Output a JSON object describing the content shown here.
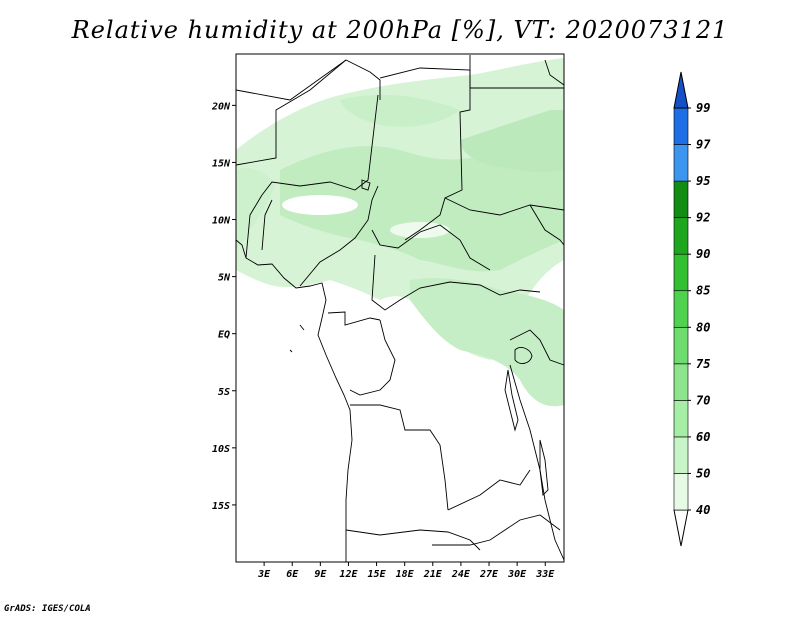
{
  "title": "Relative humidity at 200hPa [%], VT: 2020073121",
  "credit": "GrADS: IGES/COLA",
  "map": {
    "lon_range": [
      0,
      35
    ],
    "lat_range": [
      -20,
      24.5
    ],
    "lon_ticks": [
      {
        "value": 3,
        "label": "3E"
      },
      {
        "value": 6,
        "label": "6E"
      },
      {
        "value": 9,
        "label": "9E"
      },
      {
        "value": 12,
        "label": "12E"
      },
      {
        "value": 15,
        "label": "15E"
      },
      {
        "value": 18,
        "label": "18E"
      },
      {
        "value": 21,
        "label": "21E"
      },
      {
        "value": 24,
        "label": "24E"
      },
      {
        "value": 27,
        "label": "27E"
      },
      {
        "value": 30,
        "label": "30E"
      },
      {
        "value": 33,
        "label": "33E"
      }
    ],
    "lat_ticks": [
      {
        "value": 20,
        "label": "20N"
      },
      {
        "value": 15,
        "label": "15N"
      },
      {
        "value": 10,
        "label": "10N"
      },
      {
        "value": 5,
        "label": "5N"
      },
      {
        "value": 0,
        "label": "EQ"
      },
      {
        "value": -5,
        "label": "5S"
      },
      {
        "value": -10,
        "label": "10S"
      },
      {
        "value": -15,
        "label": "15S"
      }
    ]
  },
  "colorbar": {
    "levels": [
      "40",
      "50",
      "60",
      "70",
      "75",
      "80",
      "85",
      "90",
      "92",
      "95",
      "97",
      "99"
    ],
    "colors": [
      "#e6fae6",
      "#c8f5c8",
      "#a6eda6",
      "#8ce48c",
      "#6edc6e",
      "#50d250",
      "#32c032",
      "#1ea61e",
      "#128c12",
      "#3c96f0",
      "#1e6ee6",
      "#1450c8"
    ],
    "under_color": "#ffffff",
    "over_color": "#1450c8"
  },
  "colors": {
    "fill_light": "#daf5da",
    "fill_mid": "#c3edc3",
    "fill_dark": "#acE3ac"
  }
}
